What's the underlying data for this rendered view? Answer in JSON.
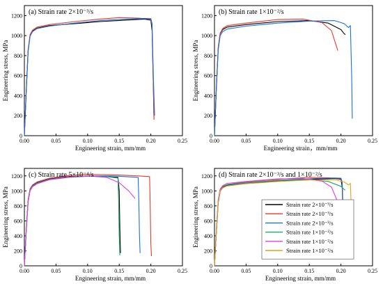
{
  "colors": {
    "black": "#000000",
    "red": "#e8392a",
    "blue": "#1a6fdc",
    "green": "#1aa869",
    "magenta": "#e040e0",
    "orange": "#e3a21a"
  },
  "chart_data": [
    {
      "type": "line",
      "title": "(a)  Strain rate 2×10⁻³/s",
      "xlabel": "Engineering strain, mm/mm",
      "ylabel": "Engineering stress, MPa",
      "xlim": [
        0,
        0.25
      ],
      "ylim": [
        0,
        1300
      ],
      "xticks": [
        "0.00",
        "0.05",
        "0.10",
        "0.15",
        "0.20",
        "0.25"
      ],
      "yticks": [
        "0",
        "200",
        "400",
        "600",
        "800",
        "1000",
        "1200"
      ],
      "series": [
        {
          "color": "black",
          "x": [
            0,
            0.003,
            0.006,
            0.009,
            0.013,
            0.02,
            0.04,
            0.08,
            0.12,
            0.16,
            0.19,
            0.2,
            0.202,
            0.204,
            0.205
          ],
          "y": [
            0,
            450,
            850,
            1000,
            1045,
            1075,
            1100,
            1120,
            1140,
            1155,
            1165,
            1155,
            1050,
            500,
            170
          ]
        },
        {
          "color": "red",
          "x": [
            0,
            0.003,
            0.006,
            0.009,
            0.013,
            0.02,
            0.04,
            0.08,
            0.12,
            0.15,
            0.18,
            0.2,
            0.202,
            0.204,
            0.205
          ],
          "y": [
            0,
            460,
            860,
            1010,
            1055,
            1085,
            1110,
            1140,
            1165,
            1180,
            1175,
            1165,
            1100,
            500,
            160
          ]
        },
        {
          "color": "blue",
          "x": [
            0,
            0.003,
            0.006,
            0.009,
            0.013,
            0.02,
            0.04,
            0.08,
            0.12,
            0.16,
            0.19,
            0.2,
            0.202,
            0.204,
            0.206
          ],
          "y": [
            0,
            440,
            840,
            995,
            1040,
            1070,
            1095,
            1125,
            1150,
            1165,
            1172,
            1170,
            1120,
            600,
            200
          ]
        }
      ]
    },
    {
      "type": "line",
      "title": "(b)  Strain rate 1×10⁻²/s",
      "xlabel": "Engineering strain，mm/mm",
      "ylabel": "Engineering stress, MPa",
      "xlim": [
        0,
        0.25
      ],
      "ylim": [
        0,
        1300
      ],
      "xticks": [
        "0.00",
        "0.05",
        "0.10",
        "0.15",
        "0.20",
        "0.25"
      ],
      "yticks": [
        "0",
        "200",
        "400",
        "600",
        "800",
        "1000",
        "1200"
      ],
      "series": [
        {
          "color": "black",
          "x": [
            0,
            0.003,
            0.006,
            0.009,
            0.013,
            0.02,
            0.05,
            0.1,
            0.15,
            0.18,
            0.2,
            0.205,
            0.207
          ],
          "y": [
            0,
            480,
            880,
            1020,
            1060,
            1085,
            1110,
            1140,
            1150,
            1125,
            1060,
            1020,
            1010
          ]
        },
        {
          "color": "red",
          "x": [
            0,
            0.003,
            0.006,
            0.009,
            0.013,
            0.02,
            0.05,
            0.1,
            0.14,
            0.17,
            0.185,
            0.195
          ],
          "y": [
            0,
            480,
            880,
            1025,
            1070,
            1100,
            1125,
            1160,
            1165,
            1130,
            1050,
            850
          ]
        },
        {
          "color": "blue",
          "x": [
            0,
            0.003,
            0.006,
            0.009,
            0.013,
            0.02,
            0.05,
            0.1,
            0.15,
            0.19,
            0.205,
            0.212,
            0.215,
            0.217,
            0.218
          ],
          "y": [
            0,
            460,
            860,
            1000,
            1040,
            1065,
            1095,
            1125,
            1145,
            1150,
            1120,
            1080,
            1100,
            600,
            170
          ]
        }
      ]
    },
    {
      "type": "line",
      "title": "(c)  Strain rate 5×10⁻⁴/s",
      "xlabel": "Engineering strain, mm/mm",
      "ylabel": "Engineering stress, MPa",
      "xlim": [
        0,
        0.25
      ],
      "ylim": [
        0,
        1300
      ],
      "xticks": [
        "0.00",
        "0.05",
        "0.10",
        "0.15",
        "0.20",
        "0.25"
      ],
      "yticks": [
        "0",
        "200",
        "400",
        "600",
        "800",
        "1000",
        "1200"
      ],
      "series": [
        {
          "color": "black",
          "x": [
            0,
            0.003,
            0.006,
            0.009,
            0.013,
            0.02,
            0.04,
            0.07,
            0.1,
            0.13,
            0.148,
            0.15,
            0.151,
            0.152
          ],
          "y": [
            0,
            480,
            870,
            1020,
            1070,
            1110,
            1160,
            1190,
            1200,
            1190,
            1180,
            1000,
            500,
            170
          ]
        },
        {
          "color": "red",
          "x": [
            0,
            0.003,
            0.006,
            0.009,
            0.013,
            0.02,
            0.04,
            0.07,
            0.1,
            0.14,
            0.18,
            0.198,
            0.199,
            0.2,
            0.201
          ],
          "y": [
            0,
            480,
            880,
            1030,
            1080,
            1120,
            1170,
            1205,
            1220,
            1215,
            1200,
            1190,
            800,
            300,
            130
          ]
        },
        {
          "color": "blue",
          "x": [
            0,
            0.003,
            0.006,
            0.009,
            0.013,
            0.02,
            0.04,
            0.07,
            0.1,
            0.14,
            0.18,
            0.181,
            0.182,
            0.183
          ],
          "y": [
            0,
            470,
            860,
            1015,
            1065,
            1105,
            1155,
            1185,
            1200,
            1200,
            1180,
            900,
            400,
            170
          ]
        },
        {
          "color": "green",
          "x": [
            0,
            0.003,
            0.006,
            0.009,
            0.013,
            0.02,
            0.04,
            0.07,
            0.1,
            0.13,
            0.148,
            0.149,
            0.15,
            0.151
          ],
          "y": [
            0,
            470,
            860,
            1015,
            1060,
            1100,
            1150,
            1180,
            1195,
            1190,
            1170,
            900,
            400,
            140
          ]
        },
        {
          "color": "magenta",
          "x": [
            0,
            0.003,
            0.006,
            0.009,
            0.013,
            0.02,
            0.04,
            0.07,
            0.1,
            0.13,
            0.15,
            0.165,
            0.175
          ],
          "y": [
            0,
            460,
            850,
            1000,
            1055,
            1095,
            1150,
            1185,
            1200,
            1180,
            1110,
            1000,
            900
          ]
        }
      ]
    },
    {
      "type": "line",
      "title": "(d)  Strain rate 2×10⁻³/s and 1×10⁻²/s",
      "xlabel": "Engineering strain, mm/mm",
      "ylabel": "Engineering stress, MPa",
      "xlim": [
        0,
        0.25
      ],
      "ylim": [
        0,
        1300
      ],
      "xticks": [
        "0.00",
        "0.05",
        "0.10",
        "0.15",
        "0.20",
        "0.25"
      ],
      "yticks": [
        "0",
        "200",
        "400",
        "600",
        "800",
        "1000",
        "1200"
      ],
      "legend": "center-right",
      "series": [
        {
          "name": "Strain rate 2×10⁻³/s",
          "color": "black",
          "x": [
            0,
            0.003,
            0.006,
            0.009,
            0.013,
            0.02,
            0.04,
            0.08,
            0.12,
            0.16,
            0.19,
            0.2,
            0.202,
            0.204,
            0.205
          ],
          "y": [
            0,
            450,
            850,
            1000,
            1045,
            1075,
            1100,
            1120,
            1140,
            1155,
            1165,
            1155,
            1050,
            500,
            170
          ]
        },
        {
          "name": "Strain rate 2×10⁻³/s",
          "color": "red",
          "x": [
            0,
            0.003,
            0.006,
            0.009,
            0.013,
            0.02,
            0.04,
            0.08,
            0.12,
            0.15,
            0.18,
            0.2,
            0.202,
            0.204,
            0.205
          ],
          "y": [
            0,
            460,
            860,
            1010,
            1055,
            1085,
            1110,
            1140,
            1165,
            1180,
            1175,
            1165,
            1100,
            500,
            160
          ]
        },
        {
          "name": "Strain rate 2×10⁻³/s",
          "color": "blue",
          "x": [
            0,
            0.003,
            0.006,
            0.009,
            0.013,
            0.02,
            0.04,
            0.08,
            0.12,
            0.16,
            0.19,
            0.2,
            0.202,
            0.204,
            0.206
          ],
          "y": [
            0,
            440,
            840,
            995,
            1040,
            1070,
            1095,
            1125,
            1150,
            1165,
            1172,
            1170,
            1120,
            600,
            200
          ]
        },
        {
          "name": "Strain rate 1×10⁻²/s",
          "color": "green",
          "x": [
            0,
            0.003,
            0.006,
            0.009,
            0.013,
            0.02,
            0.05,
            0.1,
            0.15,
            0.18,
            0.2,
            0.205,
            0.207
          ],
          "y": [
            0,
            480,
            880,
            1020,
            1060,
            1085,
            1110,
            1140,
            1150,
            1125,
            1060,
            1020,
            1010
          ]
        },
        {
          "name": "Strain rate 1×10⁻²/s",
          "color": "magenta",
          "x": [
            0,
            0.003,
            0.006,
            0.009,
            0.013,
            0.02,
            0.05,
            0.1,
            0.14,
            0.17,
            0.185,
            0.195
          ],
          "y": [
            0,
            480,
            880,
            1025,
            1070,
            1100,
            1125,
            1160,
            1165,
            1130,
            1050,
            850
          ]
        },
        {
          "name": "Strain rate 1×10⁻²/s",
          "color": "orange",
          "x": [
            0,
            0.003,
            0.006,
            0.009,
            0.013,
            0.02,
            0.05,
            0.1,
            0.15,
            0.19,
            0.205,
            0.212,
            0.215,
            0.217,
            0.218
          ],
          "y": [
            0,
            460,
            860,
            1000,
            1040,
            1065,
            1095,
            1125,
            1145,
            1150,
            1120,
            1080,
            1100,
            600,
            170
          ]
        }
      ]
    }
  ]
}
